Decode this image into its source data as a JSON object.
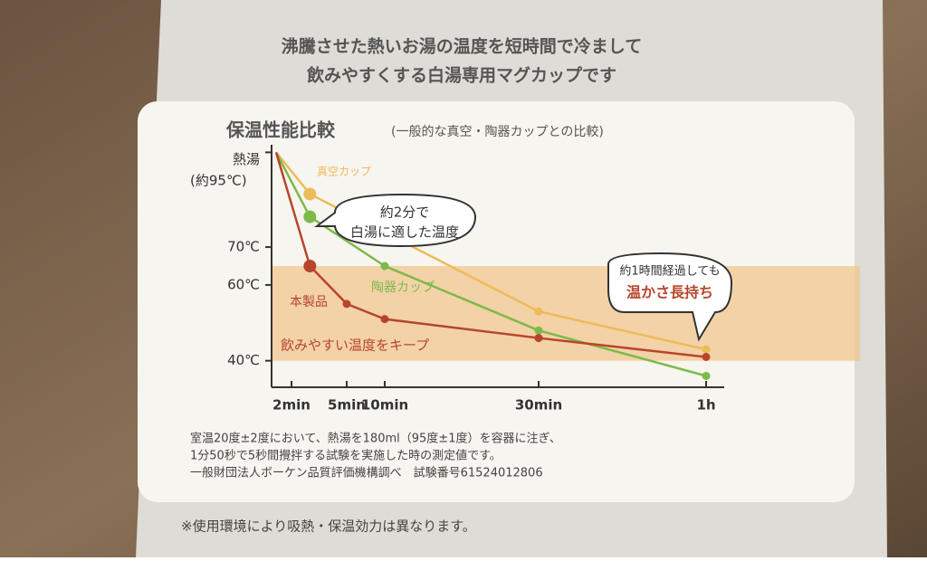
{
  "header": [
    "沸騰させた熱いお湯の温度を短時間で冷まして",
    "飲みやすくする白湯専用マグカップです"
  ],
  "chart_data": {
    "type": "line",
    "title": "保温性能比較",
    "subtitle": "(一般的な真空・陶器カップとの比較)",
    "xlim": [
      0,
      60
    ],
    "xticks": [
      {
        "value": 2,
        "label": "2min"
      },
      {
        "value": 5,
        "label": "5min"
      },
      {
        "value": 10,
        "label": "10min"
      },
      {
        "value": 30,
        "label": "30min"
      },
      {
        "value": 60,
        "label": "1h"
      }
    ],
    "ylim": [
      33,
      97
    ],
    "yticks": [
      {
        "value": 95,
        "label": "熱湯"
      },
      {
        "value": 70,
        "label": "70℃"
      },
      {
        "value": 60,
        "label": "60℃"
      },
      {
        "value": 40,
        "label": "40℃"
      }
    ],
    "band": {
      "label": "飲みやすい温度をキープ",
      "range": [
        40,
        65
      ],
      "color": "#f2c58f"
    },
    "series": [
      {
        "name": "真空カップ",
        "color": "#edbb5a",
        "x": [
          0,
          3,
          30,
          60
        ],
        "values": [
          95,
          84,
          53,
          43
        ]
      },
      {
        "name": "陶器カップ",
        "color": "#7cba4a",
        "x": [
          0,
          3,
          10,
          30,
          60
        ],
        "values": [
          95,
          78,
          65,
          48,
          36
        ]
      },
      {
        "name": "本製品",
        "color": "#b8452b",
        "x": [
          0,
          3,
          5,
          10,
          30,
          60
        ],
        "values": [
          95,
          65,
          55,
          51,
          46,
          41
        ]
      }
    ],
    "annotations": [
      "(約95℃)",
      "約2分で",
      "白湯に適した温度",
      "約1時間経過しても",
      "温かさ長持ち"
    ]
  },
  "notes": [
    "室温20度±2度において、熱湯を180ml（95度±1度）を容器に注ぎ、",
    "1分50秒で5秒間攪拌する試験を実施した時の測定値です。",
    "一般財団法人ボーケン品質評価機構調べ　試験番号61524012806"
  ],
  "footnote": "※使用環境により吸熱・保温効力は異なります。"
}
